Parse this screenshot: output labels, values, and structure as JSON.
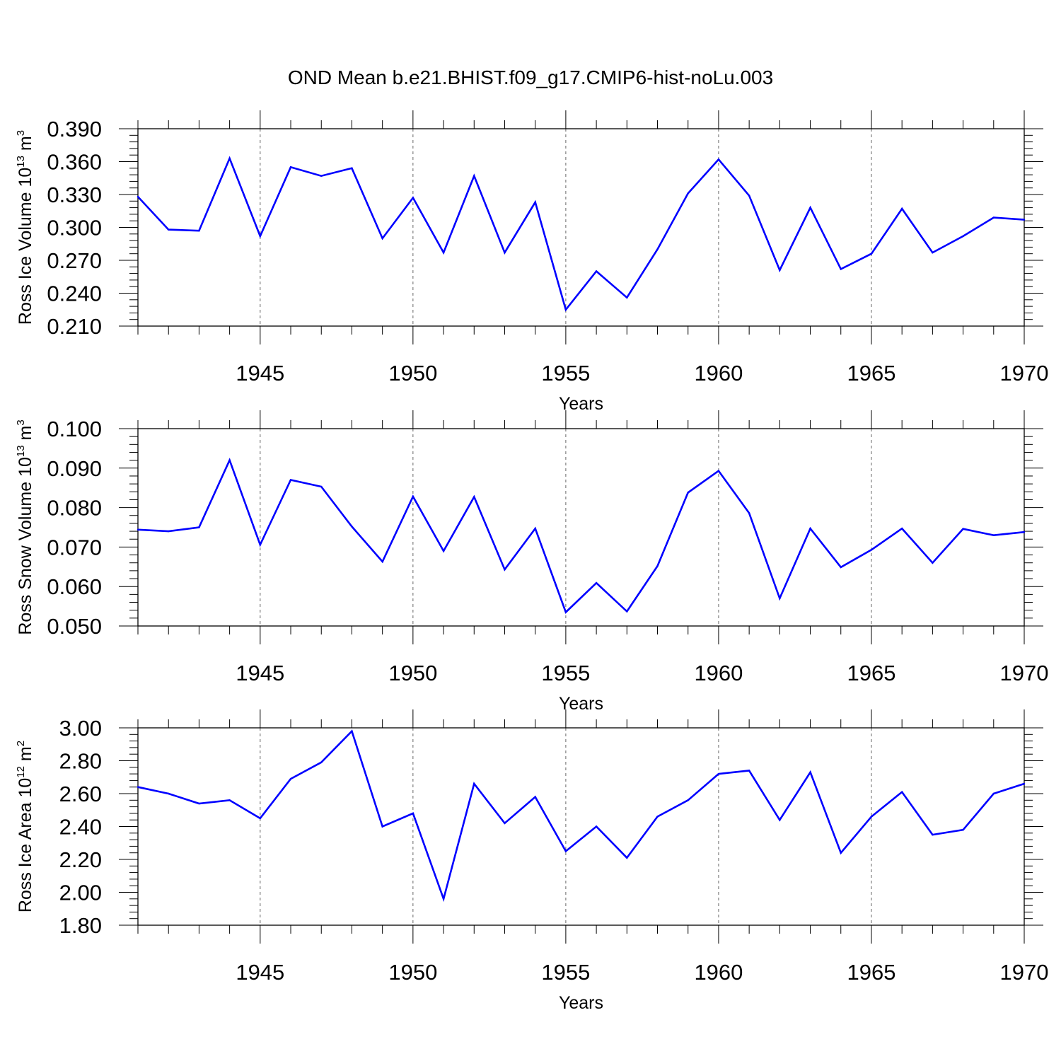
{
  "title": "OND Mean b.e21.BHIST.f09_g17.CMIP6-hist-noLu.003",
  "colors": {
    "line": "#0000ff",
    "axis": "#000000",
    "grid": "#666666"
  },
  "chart_data": [
    {
      "type": "line",
      "name": "ross-ice-volume",
      "ylabel": {
        "text": "Ross Ice Volume 10",
        "exp": "13",
        "unit": " m",
        "unit_exp": "3"
      },
      "xlabel": "Years",
      "xlim": [
        1941,
        1970
      ],
      "ylim": [
        0.21,
        0.39
      ],
      "yticks": [
        0.21,
        0.24,
        0.27,
        0.3,
        0.33,
        0.36,
        0.39
      ],
      "ytick_labels": [
        "0.210",
        "0.240",
        "0.270",
        "0.300",
        "0.330",
        "0.360",
        "0.390"
      ],
      "xticks": [
        1945,
        1950,
        1955,
        1960,
        1965,
        1970
      ],
      "xtick_labels": [
        "1945",
        "1950",
        "1955",
        "1960",
        "1965",
        "1970"
      ],
      "grid": "x-dashed",
      "x": [
        1941,
        1942,
        1943,
        1944,
        1945,
        1946,
        1947,
        1948,
        1949,
        1950,
        1951,
        1952,
        1953,
        1954,
        1955,
        1956,
        1957,
        1958,
        1959,
        1960,
        1961,
        1962,
        1963,
        1964,
        1965,
        1966,
        1967,
        1968,
        1969,
        1970
      ],
      "values": [
        0.328,
        0.298,
        0.297,
        0.363,
        0.292,
        0.355,
        0.347,
        0.354,
        0.29,
        0.327,
        0.277,
        0.347,
        0.277,
        0.323,
        0.225,
        0.26,
        0.236,
        0.28,
        0.331,
        0.362,
        0.329,
        0.261,
        0.318,
        0.262,
        0.276,
        0.317,
        0.277,
        0.292,
        0.309,
        0.307
      ]
    },
    {
      "type": "line",
      "name": "ross-snow-volume",
      "ylabel": {
        "text": "Ross Snow Volume 10",
        "exp": "13",
        "unit": " m",
        "unit_exp": "3"
      },
      "xlabel": "Years",
      "xlim": [
        1941,
        1970
      ],
      "ylim": [
        0.05,
        0.1
      ],
      "yticks": [
        0.05,
        0.06,
        0.07,
        0.08,
        0.09,
        0.1
      ],
      "ytick_labels": [
        "0.050",
        "0.060",
        "0.070",
        "0.080",
        "0.090",
        "0.100"
      ],
      "xticks": [
        1945,
        1950,
        1955,
        1960,
        1965,
        1970
      ],
      "xtick_labels": [
        "1945",
        "1950",
        "1955",
        "1960",
        "1965",
        "1970"
      ],
      "grid": "x-dashed",
      "x": [
        1941,
        1942,
        1943,
        1944,
        1945,
        1946,
        1947,
        1948,
        1949,
        1950,
        1951,
        1952,
        1953,
        1954,
        1955,
        1956,
        1957,
        1958,
        1959,
        1960,
        1961,
        1962,
        1963,
        1964,
        1965,
        1966,
        1967,
        1968,
        1969,
        1970
      ],
      "values": [
        0.0744,
        0.074,
        0.075,
        0.092,
        0.0706,
        0.087,
        0.0853,
        0.0752,
        0.0663,
        0.0828,
        0.069,
        0.0827,
        0.0643,
        0.0747,
        0.0535,
        0.0609,
        0.0537,
        0.0652,
        0.0838,
        0.0893,
        0.0786,
        0.057,
        0.0747,
        0.0649,
        0.0693,
        0.0747,
        0.066,
        0.0746,
        0.073,
        0.0738
      ]
    },
    {
      "type": "line",
      "name": "ross-ice-area",
      "ylabel": {
        "text": "Ross Ice Area 10",
        "exp": "12",
        "unit": " m",
        "unit_exp": "2"
      },
      "xlabel": "Years",
      "xlim": [
        1941,
        1970
      ],
      "ylim": [
        1.8,
        3.0
      ],
      "yticks": [
        1.8,
        2.0,
        2.2,
        2.4,
        2.6,
        2.8,
        3.0
      ],
      "ytick_labels": [
        "1.80",
        "2.00",
        "2.20",
        "2.40",
        "2.60",
        "2.80",
        "3.00"
      ],
      "xticks": [
        1945,
        1950,
        1955,
        1960,
        1965,
        1970
      ],
      "xtick_labels": [
        "1945",
        "1950",
        "1955",
        "1960",
        "1965",
        "1970"
      ],
      "grid": "x-dashed",
      "x": [
        1941,
        1942,
        1943,
        1944,
        1945,
        1946,
        1947,
        1948,
        1949,
        1950,
        1951,
        1952,
        1953,
        1954,
        1955,
        1956,
        1957,
        1958,
        1959,
        1960,
        1961,
        1962,
        1963,
        1964,
        1965,
        1966,
        1967,
        1968,
        1969,
        1970
      ],
      "values": [
        2.64,
        2.6,
        2.54,
        2.56,
        2.45,
        2.69,
        2.79,
        2.98,
        2.4,
        2.48,
        1.96,
        2.66,
        2.42,
        2.58,
        2.25,
        2.4,
        2.21,
        2.46,
        2.56,
        2.72,
        2.74,
        2.44,
        2.73,
        2.24,
        2.46,
        2.61,
        2.35,
        2.38,
        2.6,
        2.66
      ]
    }
  ]
}
